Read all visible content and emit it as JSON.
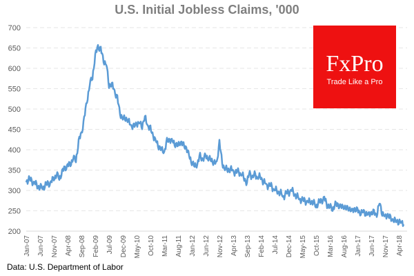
{
  "chart_data": {
    "type": "line",
    "title": "U.S. Initial Jobless Claims, '000",
    "xlabel": "",
    "ylabel": "",
    "ylim": [
      200,
      700
    ],
    "yticks": [
      200,
      250,
      300,
      350,
      400,
      450,
      500,
      550,
      600,
      650,
      700
    ],
    "xtick_labels": [
      "Jan-07",
      "Jun-07",
      "Nov-07",
      "Apr-08",
      "Sep-08",
      "Feb-09",
      "Jul-09",
      "Dec-09",
      "May-10",
      "Oct-10",
      "Mar-11",
      "Aug-11",
      "Jan-12",
      "Jun-12",
      "Nov-12",
      "Apr-13",
      "Sep-13",
      "Feb-14",
      "Jul-14",
      "Dec-14",
      "May-15",
      "Oct-15",
      "Mar-16",
      "Aug-16",
      "Jan-17",
      "Jun-17",
      "Nov-17",
      "Apr-18"
    ],
    "grid": true,
    "line_color": "#5b9bd5",
    "x_start": "Jan-07",
    "x_frequency": "monthly",
    "values": [
      320,
      330,
      320,
      320,
      310,
      310,
      305,
      315,
      315,
      320,
      330,
      340,
      330,
      345,
      355,
      360,
      365,
      380,
      375,
      420,
      440,
      475,
      520,
      560,
      580,
      630,
      655,
      645,
      620,
      610,
      560,
      560,
      545,
      525,
      490,
      475,
      480,
      470,
      460,
      455,
      465,
      465,
      460,
      480,
      460,
      450,
      435,
      420,
      410,
      400,
      395,
      420,
      425,
      420,
      415,
      410,
      420,
      410,
      405,
      385,
      370,
      360,
      365,
      385,
      375,
      385,
      380,
      375,
      370,
      365,
      420,
      365,
      355,
      350,
      355,
      345,
      345,
      345,
      340,
      330,
      320,
      345,
      330,
      340,
      330,
      335,
      320,
      315,
      310,
      310,
      300,
      300,
      295,
      285,
      290,
      295,
      300,
      295,
      285,
      280,
      275,
      275,
      270,
      275,
      270,
      262,
      270,
      275,
      280,
      265,
      260,
      255,
      265,
      265,
      258,
      262,
      255,
      258,
      248,
      255,
      250,
      245,
      248,
      245,
      240,
      245,
      245,
      240,
      270,
      245,
      235,
      240,
      230,
      228,
      225,
      225,
      220
    ]
  },
  "logo": {
    "brand": "FxPro",
    "tagline": "Trade Like a Pro",
    "color": "#ee1111"
  },
  "source": "Data: U.S. Department of Labor"
}
